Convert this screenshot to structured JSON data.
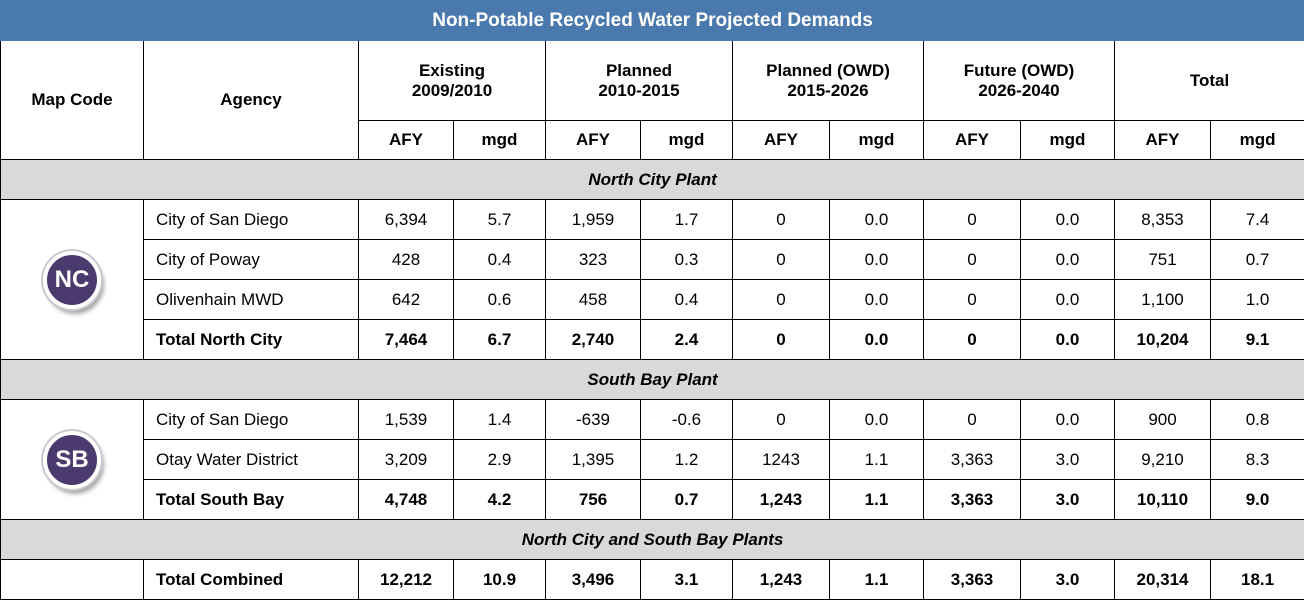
{
  "title": "Non-Potable Recycled Water Projected Demands",
  "header": {
    "map_code": "Map Code",
    "agency": "Agency",
    "groups": [
      {
        "name": "Existing",
        "period": "2009/2010"
      },
      {
        "name": "Planned",
        "period": "2010-2015"
      },
      {
        "name": "Planned (OWD)",
        "period": "2015-2026"
      },
      {
        "name": "Future (OWD)",
        "period": "2026-2040"
      },
      {
        "name": "Total"
      }
    ],
    "units": [
      "AFY",
      "mgd"
    ]
  },
  "sections": [
    {
      "name": "North City Plant",
      "code": "NC",
      "rows": [
        [
          "City of San Diego",
          "6,394",
          "5.7",
          "1,959",
          "1.7",
          "0",
          "0.0",
          "0",
          "0.0",
          "8,353",
          "7.4"
        ],
        [
          "City of Poway",
          "428",
          "0.4",
          "323",
          "0.3",
          "0",
          "0.0",
          "0",
          "0.0",
          "751",
          "0.7"
        ],
        [
          "Olivenhain MWD",
          "642",
          "0.6",
          "458",
          "0.4",
          "0",
          "0.0",
          "0",
          "0.0",
          "1,100",
          "1.0"
        ],
        [
          "Total North City",
          "7,464",
          "6.7",
          "2,740",
          "2.4",
          "0",
          "0.0",
          "0",
          "0.0",
          "10,204",
          "9.1"
        ]
      ]
    },
    {
      "name": "South Bay Plant",
      "code": "SB",
      "rows": [
        [
          "City of San Diego",
          "1,539",
          "1.4",
          "-639",
          "-0.6",
          "0",
          "0.0",
          "0",
          "0.0",
          "900",
          "0.8"
        ],
        [
          "Otay Water District",
          "3,209",
          "2.9",
          "1,395",
          "1.2",
          "1243",
          "1.1",
          "3,363",
          "3.0",
          "9,210",
          "8.3"
        ],
        [
          "Total South Bay",
          "4,748",
          "4.2",
          "756",
          "0.7",
          "1,243",
          "1.1",
          "3,363",
          "3.0",
          "10,110",
          "9.0"
        ]
      ]
    },
    {
      "name": "North City and South Bay Plants",
      "rows": [
        [
          "Total Combined",
          "12,212",
          "10.9",
          "3,496",
          "3.1",
          "1,243",
          "1.1",
          "3,363",
          "3.0",
          "20,314",
          "18.1"
        ]
      ]
    }
  ]
}
